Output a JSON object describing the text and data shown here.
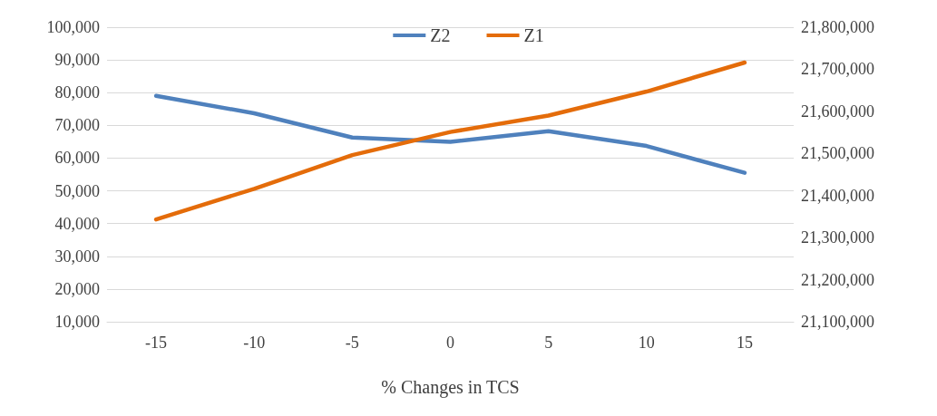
{
  "chart_data": {
    "type": "line",
    "xlabel": "% Changes in TCS",
    "categories": [
      "-15",
      "-10",
      "-5",
      "0",
      "5",
      "10",
      "15"
    ],
    "series": [
      {
        "name": "Z2",
        "color": "#4f81bd",
        "values": [
          79000,
          73700,
          66300,
          65000,
          68200,
          63700,
          55500
        ]
      },
      {
        "name": "Z1",
        "color": "#e46c0a",
        "axis": "y2",
        "values": [
          21343000,
          21416000,
          21496000,
          21551000,
          21590000,
          21647000,
          21716000
        ]
      }
    ],
    "ylim": [
      10000,
      100000
    ],
    "yticks": [
      {
        "value": 10000,
        "label": "10,000"
      },
      {
        "value": 20000,
        "label": "20,000"
      },
      {
        "value": 30000,
        "label": "30,000"
      },
      {
        "value": 40000,
        "label": "40,000"
      },
      {
        "value": 50000,
        "label": "50,000"
      },
      {
        "value": 60000,
        "label": "60,000"
      },
      {
        "value": 70000,
        "label": "70,000"
      },
      {
        "value": 80000,
        "label": "80,000"
      },
      {
        "value": 90000,
        "label": "90,000"
      },
      {
        "value": 100000,
        "label": "100,000"
      }
    ],
    "y2lim": [
      21100000,
      21800000
    ],
    "y2ticks": [
      {
        "value": 21100000,
        "label": "21,100,000"
      },
      {
        "value": 21200000,
        "label": "21,200,000"
      },
      {
        "value": 21300000,
        "label": "21,300,000"
      },
      {
        "value": 21400000,
        "label": "21,400,000"
      },
      {
        "value": 21500000,
        "label": "21,500,000"
      },
      {
        "value": 21600000,
        "label": "21,600,000"
      },
      {
        "value": 21700000,
        "label": "21,700,000"
      },
      {
        "value": 21800000,
        "label": "21,800,000"
      }
    ],
    "grid": "y",
    "legend": "top",
    "marker": "none",
    "line_style": "solid"
  }
}
